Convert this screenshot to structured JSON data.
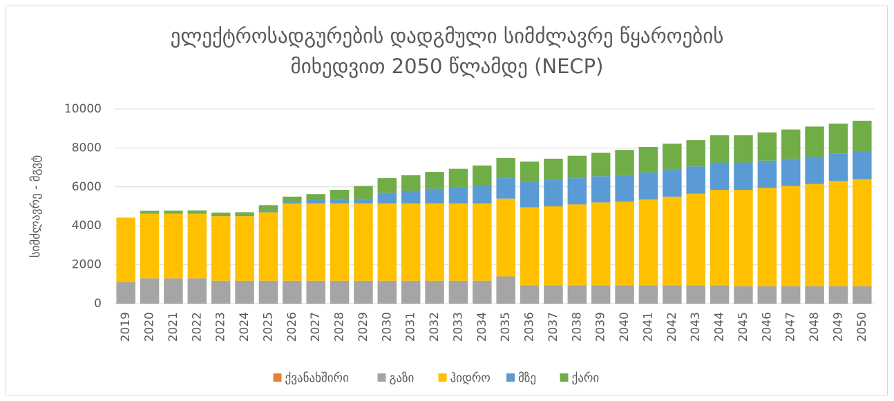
{
  "chart_data": {
    "type": "stacked_bar",
    "title": "ელექტროსადგურების დადგმული სიმძლავრე წყაროების მიხედვით 2050 წლამდე (NECP)",
    "ylabel": "სიმძლავრე - მგვტ",
    "categories": [
      "2019",
      "2020",
      "2021",
      "2022",
      "2023",
      "2024",
      "2025",
      "2026",
      "2027",
      "2028",
      "2029",
      "2030",
      "2031",
      "2032",
      "2033",
      "2034",
      "2035",
      "2036",
      "2037",
      "2038",
      "2039",
      "2040",
      "2041",
      "2042",
      "2043",
      "2044",
      "2045",
      "2046",
      "2047",
      "2048",
      "2049",
      "2050"
    ],
    "series": [
      {
        "name": "ქვანახშირი",
        "color": "#ed7d31",
        "values": [
          0,
          0,
          0,
          0,
          0,
          0,
          0,
          0,
          0,
          0,
          0,
          0,
          0,
          0,
          0,
          0,
          0,
          0,
          0,
          0,
          0,
          0,
          0,
          0,
          0,
          0,
          0,
          0,
          0,
          0,
          0,
          0
        ]
      },
      {
        "name": "გაზი",
        "color": "#a5a5a5",
        "values": [
          1100,
          1300,
          1300,
          1300,
          1180,
          1180,
          1180,
          1180,
          1180,
          1180,
          1180,
          1180,
          1180,
          1180,
          1180,
          1180,
          1400,
          950,
          950,
          950,
          950,
          950,
          950,
          950,
          950,
          950,
          900,
          900,
          900,
          900,
          900,
          900
        ]
      },
      {
        "name": "ჰიდრო",
        "color": "#ffc000",
        "values": [
          3320,
          3320,
          3320,
          3320,
          3320,
          3320,
          3520,
          3970,
          3970,
          3970,
          3970,
          3970,
          3970,
          3970,
          3970,
          3970,
          4000,
          4000,
          4050,
          4150,
          4250,
          4300,
          4400,
          4550,
          4700,
          4900,
          4950,
          5050,
          5150,
          5250,
          5400,
          5500
        ]
      },
      {
        "name": "მზე",
        "color": "#5b9bd5",
        "values": [
          0,
          30,
          30,
          40,
          40,
          60,
          80,
          120,
          170,
          200,
          200,
          550,
          650,
          750,
          850,
          950,
          1050,
          1300,
          1350,
          1350,
          1350,
          1350,
          1400,
          1400,
          1400,
          1400,
          1400,
          1400,
          1400,
          1400,
          1400,
          1400
        ]
      },
      {
        "name": "ქარი",
        "color": "#70ad47",
        "values": [
          0,
          120,
          130,
          130,
          140,
          140,
          280,
          230,
          310,
          500,
          700,
          750,
          800,
          870,
          930,
          1000,
          1030,
          1050,
          1100,
          1150,
          1200,
          1300,
          1300,
          1320,
          1350,
          1400,
          1400,
          1450,
          1500,
          1550,
          1550,
          1600
        ]
      }
    ],
    "ylim": [
      0,
      10000
    ],
    "yticks": [
      0,
      2000,
      4000,
      6000,
      8000,
      10000
    ],
    "grid": true,
    "legend": "bottom"
  }
}
